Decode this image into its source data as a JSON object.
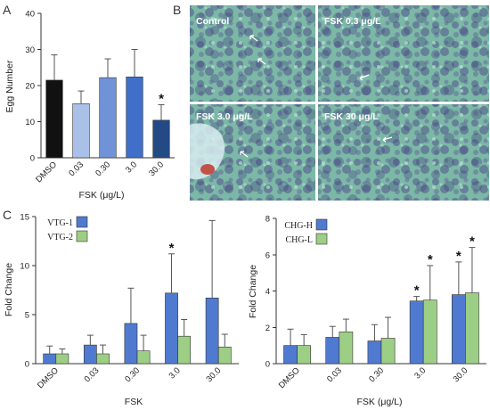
{
  "panel_letters": {
    "a": "A",
    "b": "B",
    "c": "C"
  },
  "micrographs": [
    {
      "label": "Control"
    },
    {
      "label": "FSK 0.3 μg/L"
    },
    {
      "label": "FSK 3.0 μg/L"
    },
    {
      "label": "FSK 30 μg/L"
    }
  ],
  "chart_data": [
    {
      "id": "A",
      "type": "bar",
      "categories": [
        "DMSO",
        "0.03",
        "0.30",
        "3.0",
        "30.0"
      ],
      "values": [
        21.5,
        15,
        22.2,
        22.4,
        10.4
      ],
      "errors": [
        7,
        3.5,
        5.2,
        7.6,
        4.3
      ],
      "colors": [
        "#111111",
        "#a9c1e8",
        "#6f93d6",
        "#3f6fc9",
        "#244a86"
      ],
      "significant": [
        false,
        false,
        false,
        false,
        true
      ],
      "star": "*",
      "ylabel": "Egg Number",
      "xlabel": "FSK (μg/L)",
      "ylim": [
        0,
        40
      ],
      "yticks": [
        "0",
        "10",
        "20",
        "30",
        "40"
      ]
    },
    {
      "id": "C-left",
      "type": "bar",
      "categories": [
        "DMSO",
        "0.03",
        "0.30",
        "3.0",
        "30.0"
      ],
      "series": [
        {
          "name": "VTG-1",
          "color": "#4f7ad0",
          "values": [
            1,
            1.9,
            4.1,
            7.2,
            6.7
          ],
          "errors": [
            0.8,
            1.0,
            3.6,
            4.0,
            7.9
          ],
          "significant": [
            false,
            false,
            false,
            true,
            false
          ]
        },
        {
          "name": "VTG-2",
          "color": "#9dce85",
          "values": [
            1,
            1.0,
            1.3,
            2.8,
            1.7
          ],
          "errors": [
            0.5,
            0.9,
            1.6,
            1.7,
            1.3
          ],
          "significant": [
            false,
            false,
            false,
            false,
            false
          ]
        }
      ],
      "star": "*",
      "ylabel": "Fold Change",
      "xlabel": "FSK",
      "ylim": [
        0,
        15
      ],
      "yticks": [
        "0",
        "5",
        "10",
        "15"
      ],
      "legend": "top-left"
    },
    {
      "id": "C-right",
      "type": "bar",
      "categories": [
        "DMSO",
        "0.03",
        "0.30",
        "3.0",
        "30.0"
      ],
      "series": [
        {
          "name": "CHG-H",
          "color": "#4f7ad0",
          "values": [
            1,
            1.45,
            1.25,
            3.45,
            3.8
          ],
          "errors": [
            0.9,
            0.6,
            0.9,
            0.25,
            1.8
          ],
          "significant": [
            false,
            false,
            false,
            true,
            true
          ]
        },
        {
          "name": "CHG-L",
          "color": "#9dce85",
          "values": [
            1,
            1.75,
            1.4,
            3.5,
            3.9
          ],
          "errors": [
            0.6,
            0.7,
            1.15,
            1.9,
            2.5
          ],
          "significant": [
            false,
            false,
            false,
            true,
            true
          ]
        }
      ],
      "star": "*",
      "ylabel": "Fold Change",
      "xlabel": "FSK (μg/L)",
      "ylim": [
        0,
        8
      ],
      "yticks": [
        "0",
        "2",
        "4",
        "6",
        "8"
      ],
      "legend": "top-left"
    }
  ]
}
